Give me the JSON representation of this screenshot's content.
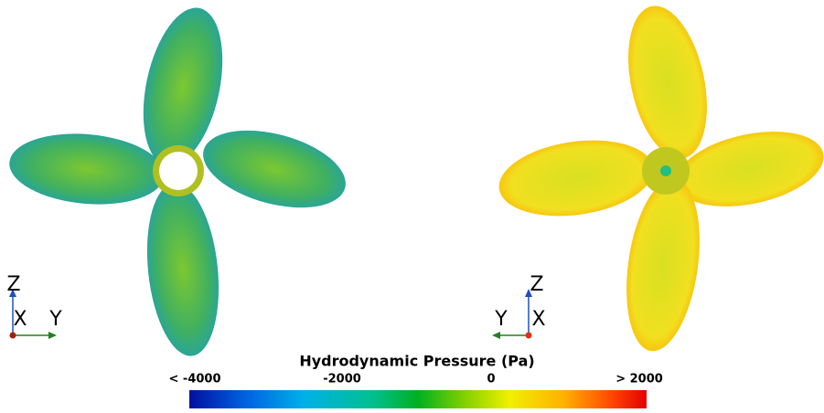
{
  "colorbar": {
    "title": "Hydrodynamic Pressure (Pa)",
    "labels": [
      "< -4000",
      "-2000",
      "0",
      "> 2000"
    ]
  },
  "left_view": {
    "axes": {
      "vertical": "Z",
      "depth": "X",
      "horizontal": "Y"
    }
  },
  "right_view": {
    "axes": {
      "vertical": "Z",
      "horizontal": "Y",
      "depth": "X"
    }
  }
}
